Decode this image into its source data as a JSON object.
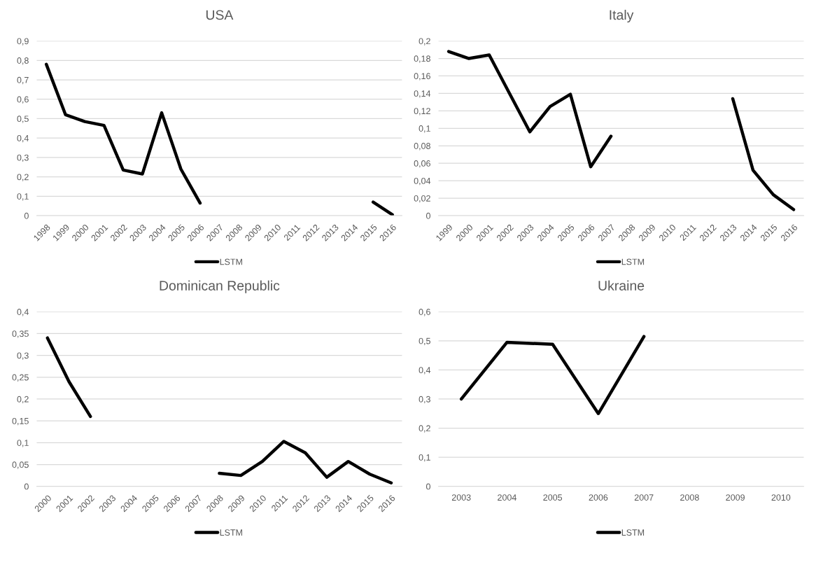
{
  "chart_data": [
    {
      "type": "line",
      "title": "USA",
      "categories": [
        "1998",
        "1999",
        "2000",
        "2001",
        "2002",
        "2003",
        "2004",
        "2005",
        "2006",
        "2007",
        "2008",
        "2009",
        "2010",
        "2011",
        "2012",
        "2013",
        "2014",
        "2015",
        "2016"
      ],
      "series": [
        {
          "name": "LSTM",
          "color": "#000000",
          "values": [
            0.78,
            0.52,
            0.485,
            0.465,
            0.235,
            0.215,
            0.53,
            0.24,
            0.065,
            null,
            null,
            null,
            null,
            null,
            null,
            null,
            null,
            0.07,
            0.005
          ]
        }
      ],
      "ylim": [
        0,
        0.9
      ],
      "yticks": [
        0,
        {
          "value": 0.1,
          "label": "0,1"
        },
        {
          "value": 0.2,
          "label": "0,2"
        },
        {
          "value": 0.3,
          "label": "0,3"
        },
        {
          "value": 0.4,
          "label": "0,4"
        },
        {
          "value": 0.5,
          "label": "0,5"
        },
        {
          "value": 0.6,
          "label": "0,6"
        },
        {
          "value": 0.7,
          "label": "0,7"
        },
        {
          "value": 0.8,
          "label": "0,8"
        },
        {
          "value": 0.9,
          "label": "0,9"
        }
      ],
      "grid": "y",
      "legend": "bottom",
      "marker": "none",
      "line_style": "solid"
    },
    {
      "type": "line",
      "title": "Italy",
      "categories": [
        "1999",
        "2000",
        "2001",
        "2002",
        "2003",
        "2004",
        "2005",
        "2006",
        "2007",
        "2008",
        "2009",
        "2010",
        "2011",
        "2012",
        "2013",
        "2014",
        "2015",
        "2016"
      ],
      "series": [
        {
          "name": "LSTM",
          "color": "#000000",
          "values": [
            0.188,
            0.18,
            0.184,
            0.14,
            0.096,
            0.125,
            0.139,
            0.056,
            0.091,
            null,
            null,
            null,
            null,
            null,
            0.134,
            0.052,
            0.024,
            0.007
          ]
        }
      ],
      "ylim": [
        0,
        0.2
      ],
      "yticks": [
        0,
        {
          "value": 0.02,
          "label": "0,02"
        },
        {
          "value": 0.04,
          "label": "0,04"
        },
        {
          "value": 0.06,
          "label": "0,06"
        },
        {
          "value": 0.08,
          "label": "0,08"
        },
        {
          "value": 0.1,
          "label": "0,1"
        },
        {
          "value": 0.12,
          "label": "0,12"
        },
        {
          "value": 0.14,
          "label": "0,14"
        },
        {
          "value": 0.16,
          "label": "0,16"
        },
        {
          "value": 0.18,
          "label": "0,18"
        },
        {
          "value": 0.2,
          "label": "0,2"
        }
      ],
      "grid": "y",
      "legend": "bottom",
      "marker": "none",
      "line_style": "solid"
    },
    {
      "type": "line",
      "title": "Dominican Republic",
      "categories": [
        "2000",
        "2001",
        "2002",
        "2003",
        "2004",
        "2005",
        "2006",
        "2007",
        "2008",
        "2009",
        "2010",
        "2011",
        "2012",
        "2013",
        "2014",
        "2015",
        "2016"
      ],
      "series": [
        {
          "name": "LSTM",
          "color": "#000000",
          "values": [
            0.34,
            0.24,
            0.16,
            null,
            null,
            null,
            null,
            null,
            0.03,
            0.025,
            0.057,
            0.103,
            0.077,
            0.021,
            0.057,
            0.028,
            0.008
          ]
        }
      ],
      "ylim": [
        0,
        0.4
      ],
      "yticks": [
        0,
        {
          "value": 0.05,
          "label": "0,05"
        },
        {
          "value": 0.1,
          "label": "0,1"
        },
        {
          "value": 0.15,
          "label": "0,15"
        },
        {
          "value": 0.2,
          "label": "0,2"
        },
        {
          "value": 0.25,
          "label": "0,25"
        },
        {
          "value": 0.3,
          "label": "0,3"
        },
        {
          "value": 0.35,
          "label": "0,35"
        },
        {
          "value": 0.4,
          "label": "0,4"
        }
      ],
      "grid": "y",
      "legend": "bottom",
      "marker": "none",
      "line_style": "solid"
    },
    {
      "type": "line",
      "title": "Ukraine",
      "categories": [
        "2003",
        "2004",
        "2005",
        "2006",
        "2007",
        "2008",
        "2009",
        "2010"
      ],
      "series": [
        {
          "name": "LSTM",
          "color": "#000000",
          "values": [
            0.3,
            0.495,
            0.488,
            0.25,
            0.515,
            null,
            null,
            null
          ]
        }
      ],
      "ylim": [
        0,
        0.6
      ],
      "yticks": [
        0,
        {
          "value": 0.1,
          "label": "0,1"
        },
        {
          "value": 0.2,
          "label": "0,2"
        },
        {
          "value": 0.3,
          "label": "0,3"
        },
        {
          "value": 0.4,
          "label": "0,4"
        },
        {
          "value": 0.5,
          "label": "0,5"
        },
        {
          "value": 0.6,
          "label": "0,6"
        }
      ],
      "grid": "y",
      "legend": "bottom",
      "marker": "none",
      "line_style": "solid"
    }
  ]
}
